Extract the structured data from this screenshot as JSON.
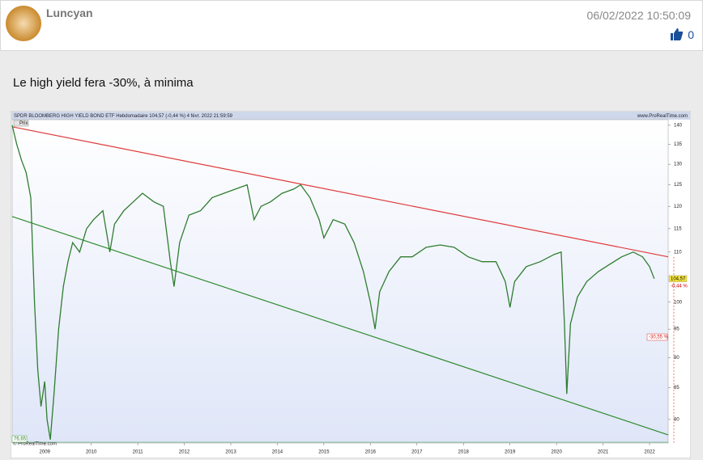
{
  "post": {
    "author": "Luncyan",
    "date": "06/02/2022 10:50:09",
    "likes": 0,
    "body": "Le high yield fera -30%, à minima"
  },
  "chart_data": {
    "type": "line",
    "title": "SPDR BLOOMBERG HIGH YIELD BOND ETF Hebdomadaire 104,57 (-0,44 %) 4 févr. 2022 21:59:59",
    "watermark": "www.ProRealTime.com",
    "copyright": "© ProRealTime.com",
    "x": [
      2008.3,
      2008.4,
      2008.5,
      2008.6,
      2008.7,
      2008.78,
      2008.85,
      2008.92,
      2009.0,
      2009.05,
      2009.12,
      2009.2,
      2009.3,
      2009.4,
      2009.5,
      2009.6,
      2009.75,
      2009.9,
      2010.05,
      2010.25,
      2010.4,
      2010.5,
      2010.7,
      2010.9,
      2011.1,
      2011.35,
      2011.55,
      2011.7,
      2011.78,
      2011.9,
      2012.1,
      2012.35,
      2012.6,
      2012.85,
      2013.1,
      2013.35,
      2013.5,
      2013.65,
      2013.85,
      2014.1,
      2014.35,
      2014.5,
      2014.7,
      2014.9,
      2015.0,
      2015.2,
      2015.45,
      2015.65,
      2015.85,
      2016.0,
      2016.1,
      2016.2,
      2016.4,
      2016.65,
      2016.9,
      2017.2,
      2017.5,
      2017.8,
      2018.1,
      2018.4,
      2018.7,
      2018.9,
      2019.0,
      2019.1,
      2019.35,
      2019.65,
      2019.95,
      2020.1,
      2020.17,
      2020.22,
      2020.3,
      2020.45,
      2020.65,
      2020.9,
      2021.15,
      2021.4,
      2021.65,
      2021.85,
      2022.0,
      2022.1
    ],
    "series": [
      {
        "name": "Prix",
        "color": "#2f7d2f",
        "values": [
          140,
          135,
          131,
          128,
          122,
          100,
          88,
          82,
          86,
          80,
          77,
          84,
          95,
          103,
          108,
          112,
          110,
          115,
          117,
          119,
          110,
          116,
          119,
          121,
          123,
          121,
          120,
          108,
          103,
          112,
          118,
          119,
          122,
          123,
          124,
          125,
          117,
          120,
          121,
          123,
          124,
          125,
          122,
          117,
          113,
          117,
          116,
          112,
          106,
          100,
          95,
          102,
          106,
          109,
          109,
          111,
          111.5,
          111,
          109,
          108,
          108,
          104,
          99,
          104,
          107,
          108,
          109.5,
          110,
          96,
          84,
          96,
          101,
          104,
          106,
          107.5,
          109,
          110,
          109,
          107,
          104.57
        ]
      }
    ],
    "trend_lines": [
      {
        "color": "#e03a3a",
        "x": [
          2008.3,
          2022.4
        ],
        "values": [
          139.6,
          109
        ]
      },
      {
        "color": "#2e8b2e",
        "x": [
          2008.3,
          2022.4
        ],
        "values": [
          117.7,
          77.7
        ]
      }
    ],
    "price_label": "104,57",
    "change_label": "-0,44 %",
    "target_label": "-30,55 %",
    "low_label": "76,65",
    "xlim": [
      2008.3,
      2022.4
    ],
    "xticks": [
      2009,
      2010,
      2011,
      2012,
      2013,
      2014,
      2015,
      2016,
      2017,
      2018,
      2019,
      2020,
      2021,
      2022
    ],
    "ylim": [
      76.5,
      141.5
    ],
    "yticks": [
      80,
      85,
      90,
      95,
      100,
      110,
      115,
      120,
      125,
      130,
      135,
      140
    ],
    "log_y": true
  }
}
